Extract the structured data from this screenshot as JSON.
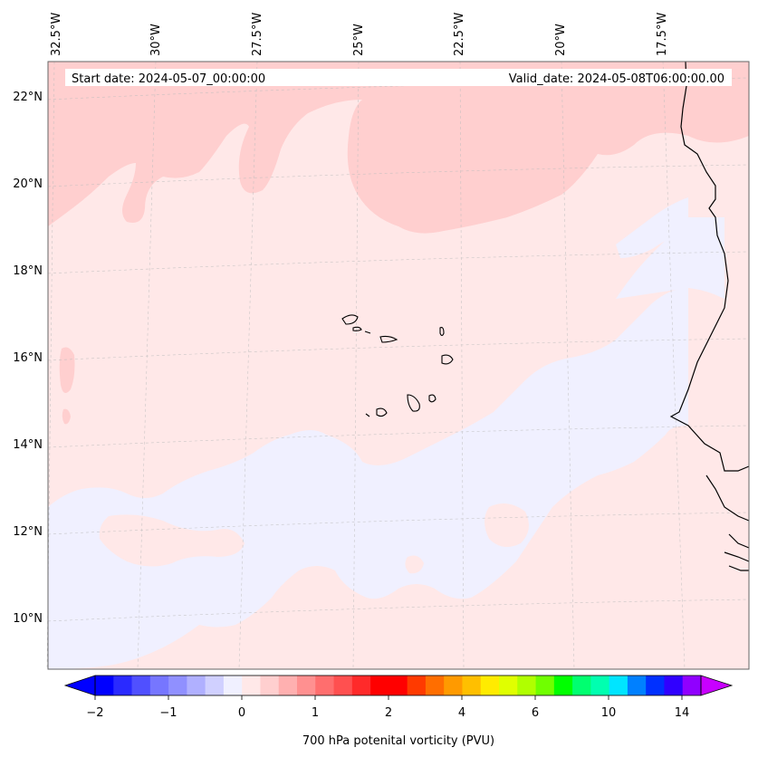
{
  "header": {
    "start_date": "Start date: 2024-05-07_00:00:00",
    "valid_date": "Valid_date: 2024-05-08T06:00:00.00"
  },
  "map": {
    "lon_labels": [
      "32.5°W",
      "30°W",
      "27.5°W",
      "25°W",
      "22.5°W",
      "20°W",
      "17.5°W"
    ],
    "lat_labels": [
      "22°N",
      "20°N",
      "18°N",
      "16°N",
      "14°N",
      "12°N",
      "10°N"
    ],
    "field_colors": {
      "background": "#ffe8e8",
      "positive_patch": "#ffcfcf",
      "negative_patch": "#f0f0ff"
    }
  },
  "colorbar": {
    "label": "700 hPa potenital vorticity (PVU)",
    "tick_labels": [
      "−2",
      "−1",
      "0",
      "1",
      "2",
      "4",
      "6",
      "10",
      "14"
    ],
    "colors": [
      "#0000ff",
      "#2a2aff",
      "#5050ff",
      "#7676ff",
      "#9090ff",
      "#b0b0ff",
      "#d0d0ff",
      "#f0f0ff",
      "#ffe8e8",
      "#ffcfcf",
      "#ffb0b0",
      "#ff9090",
      "#ff6e6e",
      "#ff5050",
      "#ff2a2a",
      "#ff0000",
      "#ff0000",
      "#ff3a00",
      "#ff6e00",
      "#ff9a00",
      "#ffbf00",
      "#ffeb00",
      "#e0ff00",
      "#b0ff00",
      "#70ff00",
      "#00ff00",
      "#00ff70",
      "#00ffb0",
      "#00e5ff",
      "#0080ff",
      "#0030ff",
      "#3000ff",
      "#9000ff"
    ],
    "extend_low_color": "#0000ff",
    "extend_high_color": "#c800ff"
  }
}
